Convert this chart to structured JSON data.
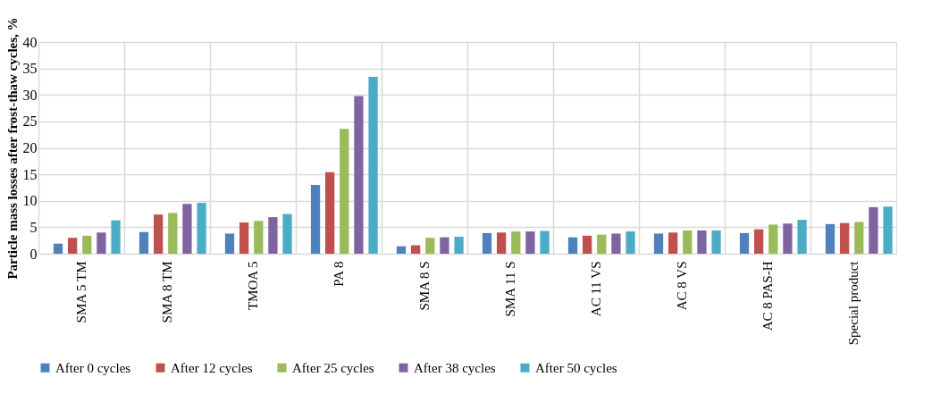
{
  "chart_data": {
    "type": "bar",
    "ylabel": "Particle mass losses after frost-thaw cycles, %",
    "categories": [
      "SMA 5 TM",
      "SMA 8 TM",
      "TMOA 5",
      "PA 8",
      "SMA 8 S",
      "SMA 11 S",
      "AC 11 VS",
      "AC 8 VS",
      "AC 8 PAS-H",
      "Special product"
    ],
    "series": [
      {
        "name": "After 0 cycles",
        "color": "#4f81bd",
        "values": [
          1.9,
          4.1,
          3.8,
          13.0,
          1.4,
          3.9,
          3.1,
          3.8,
          3.9,
          5.6
        ]
      },
      {
        "name": "After 12 cycles",
        "color": "#c0504d",
        "values": [
          3.0,
          7.4,
          5.9,
          15.4,
          1.6,
          4.0,
          3.4,
          4.0,
          4.6,
          5.8
        ]
      },
      {
        "name": "After 25 cycles",
        "color": "#9bbb59",
        "values": [
          3.4,
          7.7,
          6.2,
          23.6,
          3.0,
          4.2,
          3.6,
          4.4,
          5.5,
          6.0
        ]
      },
      {
        "name": "After 38 cycles",
        "color": "#8064a2",
        "values": [
          4.0,
          9.4,
          6.9,
          29.8,
          3.1,
          4.2,
          3.8,
          4.4,
          5.7,
          8.8
        ]
      },
      {
        "name": "After 50 cycles",
        "color": "#4bacc6",
        "values": [
          6.3,
          9.6,
          7.5,
          33.4,
          3.2,
          4.3,
          4.2,
          4.4,
          6.4,
          8.9
        ]
      }
    ],
    "ylim": [
      0,
      40
    ],
    "yticks": [
      0,
      5,
      10,
      15,
      20,
      25,
      30,
      35,
      40
    ],
    "grid": true,
    "legend": "bottom"
  }
}
